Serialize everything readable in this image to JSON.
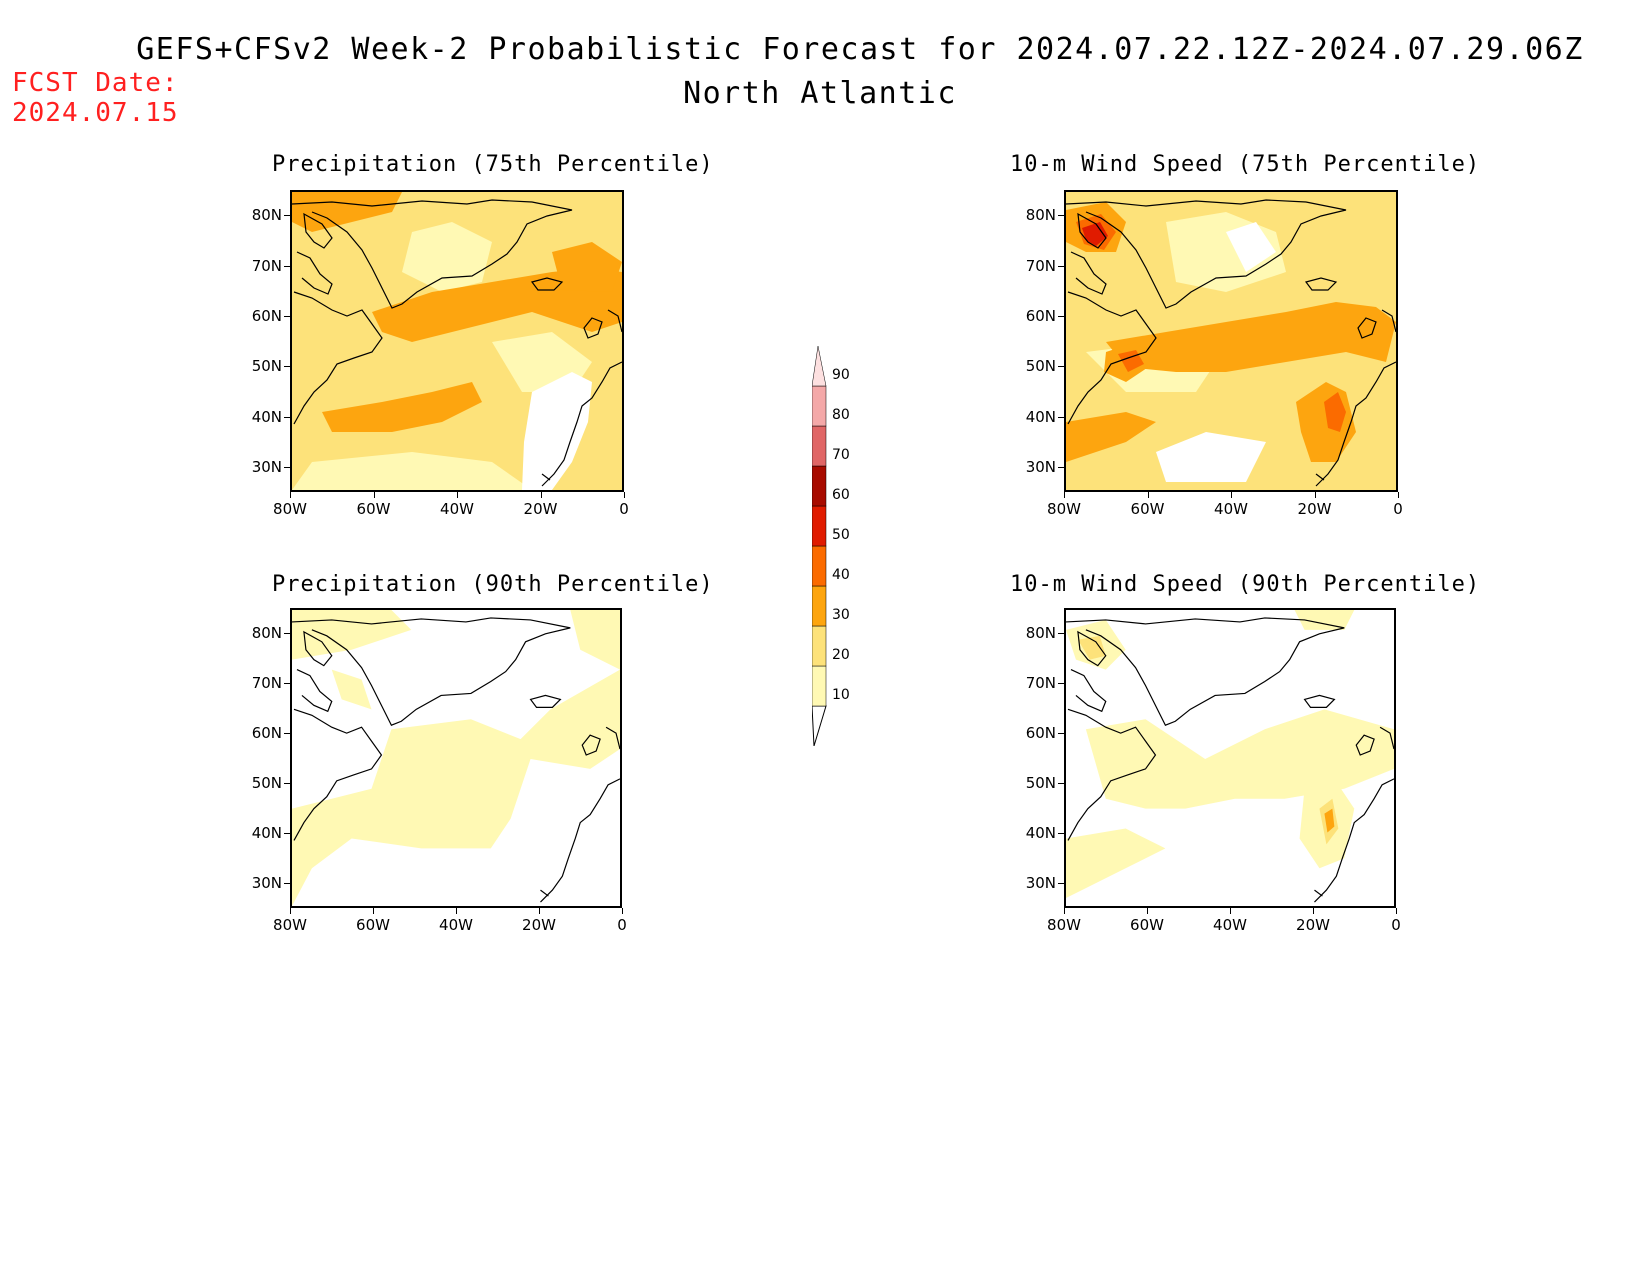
{
  "header": {
    "title": "GEFS+CFSv2 Week-2 Probabilistic Forecast for 2024.07.22.12Z-2024.07.29.06Z",
    "subtitle": "North Atlantic",
    "fcst_date": "FCST Date:\n2024.07.15"
  },
  "axes": {
    "lat_ticks": [
      "80N",
      "70N",
      "60N",
      "50N",
      "40N",
      "30N"
    ],
    "lon_ticks": [
      "80W",
      "60W",
      "40W",
      "20W",
      "0"
    ]
  },
  "panels": [
    {
      "id": "precip-75",
      "title": "Precipitation (75th Percentile)"
    },
    {
      "id": "wind-75",
      "title": "10-m Wind Speed (75th Percentile)"
    },
    {
      "id": "precip-90",
      "title": "Precipitation (90th Percentile)"
    },
    {
      "id": "wind-90",
      "title": "10-m Wind Speed (90th Percentile)"
    }
  ],
  "colorbar": {
    "levels": [
      "10",
      "20",
      "30",
      "40",
      "50",
      "60",
      "70",
      "80",
      "90"
    ],
    "colors": [
      "#fff9b4",
      "#fde27a",
      "#fda50f",
      "#fb6b00",
      "#e01b00",
      "#a80b00",
      "#e06666",
      "#f4a8a8",
      "#fde0e0"
    ]
  },
  "palette": {
    "white": "#ffffff",
    "c10": "#fff9b4",
    "c20": "#fde27a",
    "c30": "#fda50f",
    "c40": "#fb6b00",
    "c50": "#e01b00",
    "c60": "#a80b00"
  }
}
